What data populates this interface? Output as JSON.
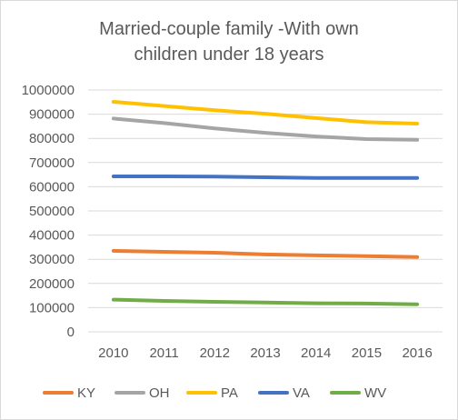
{
  "chart_data": {
    "type": "line",
    "title_lines": [
      "Married-couple family -With own",
      "children under 18 years"
    ],
    "xlabel": "",
    "ylabel": "",
    "x": [
      "2010",
      "2011",
      "2012",
      "2013",
      "2014",
      "2015",
      "2016"
    ],
    "ylim": [
      0,
      1000000
    ],
    "ytick_step": 100000,
    "y_ticks": [
      "0",
      "100000",
      "200000",
      "300000",
      "400000",
      "500000",
      "600000",
      "700000",
      "800000",
      "900000",
      "1000000"
    ],
    "grid": true,
    "legend_position": "bottom",
    "series": [
      {
        "name": "KY",
        "color": "#ED7D31",
        "values": [
          335000,
          331000,
          327000,
          320000,
          316000,
          313000,
          309000
        ]
      },
      {
        "name": "OH",
        "color": "#A5A5A5",
        "values": [
          882000,
          863000,
          841000,
          823000,
          808000,
          797000,
          794000
        ]
      },
      {
        "name": "PA",
        "color": "#FFC000",
        "values": [
          951000,
          934000,
          916000,
          902000,
          884000,
          867000,
          861000
        ]
      },
      {
        "name": "VA",
        "color": "#4472C4",
        "values": [
          643000,
          643000,
          642000,
          639000,
          636000,
          636000,
          636000
        ]
      },
      {
        "name": "WV",
        "color": "#70AD47",
        "values": [
          133000,
          128000,
          124000,
          121000,
          118000,
          117000,
          114000
        ]
      }
    ]
  }
}
